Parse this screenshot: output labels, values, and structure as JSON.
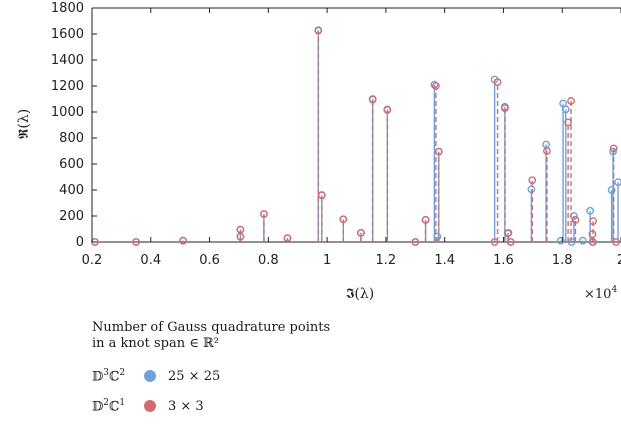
{
  "chart_data": {
    "type": "stem",
    "xlabel": "𝕴(λ)",
    "ylabel": "𝕽(λ)",
    "x_multiplier": "×10",
    "x_multiplier_exp": "4",
    "xlim": [
      0.2,
      2.0
    ],
    "ylim": [
      0,
      1800
    ],
    "xticks": [
      "0.2",
      "0.4",
      "0.6",
      "0.8",
      "1",
      "1.2",
      "1.4",
      "1.6",
      "1.8",
      "2"
    ],
    "yticks": [
      "0",
      "200",
      "400",
      "600",
      "800",
      "1000",
      "1200",
      "1400",
      "1600",
      "1800"
    ],
    "legend_title_line1": "Number of Gauss quadrature points",
    "legend_title_line2": "in a knot span ∈ ℝ²",
    "series": [
      {
        "name": "D³C² — 25 × 25",
        "color": "#6fa1d8",
        "linestyle": "solid",
        "points": [
          [
            0.21,
            0
          ],
          [
            0.35,
            0
          ],
          [
            0.51,
            10
          ],
          [
            0.705,
            40
          ],
          [
            0.705,
            95
          ],
          [
            0.785,
            215
          ],
          [
            0.865,
            30
          ],
          [
            0.97,
            1630
          ],
          [
            0.982,
            360
          ],
          [
            1.055,
            175
          ],
          [
            1.115,
            70
          ],
          [
            1.155,
            1100
          ],
          [
            1.205,
            1020
          ],
          [
            1.3,
            0
          ],
          [
            1.335,
            170
          ],
          [
            1.365,
            1210
          ],
          [
            1.375,
            40
          ],
          [
            1.38,
            695
          ],
          [
            1.57,
            1250
          ],
          [
            1.605,
            1040
          ],
          [
            1.615,
            65
          ],
          [
            1.625,
            0
          ],
          [
            1.695,
            405
          ],
          [
            1.745,
            750
          ],
          [
            1.795,
            10
          ],
          [
            1.803,
            1065
          ],
          [
            1.812,
            1020
          ],
          [
            1.832,
            0
          ],
          [
            1.84,
            200
          ],
          [
            1.87,
            10
          ],
          [
            1.895,
            240
          ],
          [
            1.905,
            0
          ],
          [
            1.968,
            400
          ],
          [
            1.973,
            695
          ],
          [
            1.99,
            460
          ]
        ]
      },
      {
        "name": "D²C¹ — 3 × 3",
        "color": "#d46a6f",
        "linestyle": "dashed",
        "points": [
          [
            0.21,
            0
          ],
          [
            0.35,
            0
          ],
          [
            0.51,
            10
          ],
          [
            0.705,
            40
          ],
          [
            0.705,
            95
          ],
          [
            0.785,
            215
          ],
          [
            0.865,
            30
          ],
          [
            0.97,
            1625
          ],
          [
            0.982,
            360
          ],
          [
            1.055,
            175
          ],
          [
            1.115,
            70
          ],
          [
            1.155,
            1095
          ],
          [
            1.205,
            1015
          ],
          [
            1.3,
            0
          ],
          [
            1.335,
            170
          ],
          [
            1.37,
            1200
          ],
          [
            1.38,
            695
          ],
          [
            1.57,
            0
          ],
          [
            1.58,
            1230
          ],
          [
            1.605,
            1030
          ],
          [
            1.617,
            70
          ],
          [
            1.625,
            0
          ],
          [
            1.698,
            475
          ],
          [
            1.748,
            700
          ],
          [
            1.82,
            920
          ],
          [
            1.83,
            1085
          ],
          [
            1.845,
            170
          ],
          [
            1.905,
            160
          ],
          [
            1.903,
            60
          ],
          [
            1.903,
            0
          ],
          [
            1.975,
            720
          ],
          [
            1.983,
            0
          ]
        ]
      }
    ]
  },
  "legend": {
    "title_line1": "Number of Gauss quadrature points",
    "title_line2": "in a knot span ∈ ℝ²",
    "items": [
      {
        "base": "𝔻",
        "sup1": "3",
        "mid": "ℂ",
        "sup2": "2",
        "color": "#6fa1d8",
        "value": "25 × 25"
      },
      {
        "base": "𝔻",
        "sup1": "2",
        "mid": "ℂ",
        "sup2": "1",
        "color": "#d46a6f",
        "value": "3 × 3"
      }
    ]
  }
}
